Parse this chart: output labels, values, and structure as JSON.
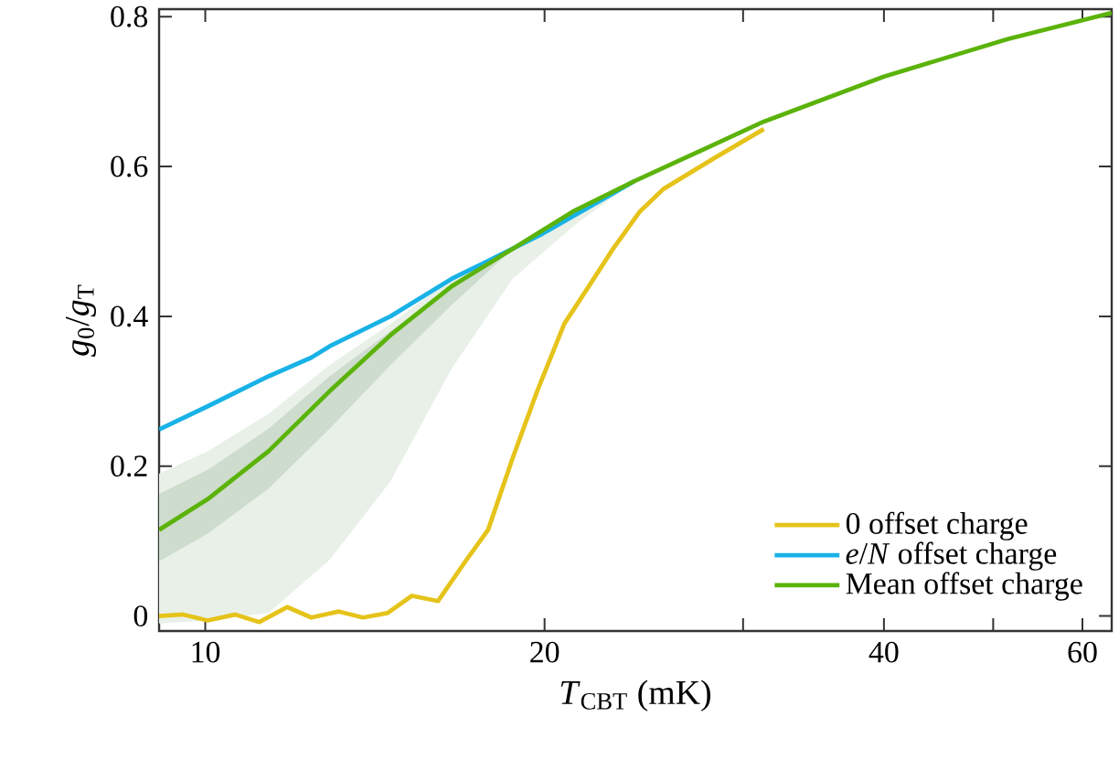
{
  "chart_data": {
    "type": "line",
    "xlabel": "*T*$_{CBT}$ (mK)",
    "ylabel": "*g*$_{0}$/*g*$_{T}$",
    "log": "x",
    "xlim": [
      9.1,
      63.7
    ],
    "ylim": [
      -0.02,
      0.81
    ],
    "xticks": [
      10,
      20,
      {
        "value": 30,
        "label": null
      },
      40,
      {
        "value": 50,
        "label": null
      },
      60
    ],
    "yticks": [
      0,
      0.2,
      0.4,
      0.6,
      0.8
    ],
    "legend": "bottom right",
    "marker": "none",
    "line_style": "solid",
    "series": [
      {
        "name": "0 offset charge",
        "color": "#e5c31a",
        "x": [
          9.1,
          9.56,
          10.05,
          10.63,
          11.17,
          11.82,
          12.42,
          13.14,
          13.8,
          14.51,
          15.25,
          16.09,
          16.96,
          17.82,
          18.73,
          19.7,
          20.82,
          21.89,
          23.0,
          24.3,
          25.5,
          28.2,
          31.3
        ],
        "values": [
          0,
          0.002,
          -0.006,
          0.002,
          -0.008,
          0.012,
          -0.002,
          0.006,
          -0.002,
          0.004,
          0.027,
          0.02,
          0.07,
          0.115,
          0.21,
          0.3,
          0.39,
          0.44,
          0.49,
          0.54,
          0.57,
          0.61,
          0.65
        ]
      },
      {
        "name": "*e*/*N* offset charge",
        "color": "#18b2e6",
        "x": [
          9.1,
          10.05,
          11.38,
          12.42,
          12.89,
          14.6,
          16.54,
          17.6,
          19.9,
          24.0
        ],
        "values": [
          0.249,
          0.28,
          0.32,
          0.345,
          0.36,
          0.4,
          0.45,
          0.47,
          0.51,
          0.58
        ]
      },
      {
        "name": "Mean offset charge",
        "color": "#5bb30a",
        "x": [
          9.1,
          10.05,
          11.38,
          12.89,
          14.6,
          16.54,
          18.73,
          21.2,
          24.0,
          31.3,
          40,
          51.5,
          63.7
        ],
        "values": [
          0.115,
          0.156,
          0.22,
          0.3,
          0.375,
          0.44,
          0.49,
          0.54,
          0.58,
          0.66,
          0.72,
          0.77,
          0.805
        ],
        "lower": [
          -0.01,
          -0.006,
          0.004,
          0.075,
          0.18,
          0.33,
          0.45,
          0.52,
          0.58,
          0.66,
          0.72,
          0.77,
          0.805
        ],
        "upper": [
          0.19,
          0.22,
          0.27,
          0.335,
          0.39,
          0.45,
          0.49,
          0.54,
          0.58,
          0.66,
          0.72,
          0.77,
          0.805
        ]
      },
      {
        "color": "#cddccd",
        "x": [
          9.1,
          10.05,
          11.38,
          12.89,
          14.6,
          16.54,
          18.73,
          21.2,
          24.0
        ],
        "values": [
          null,
          null,
          null,
          null,
          null,
          null,
          null,
          null,
          null
        ],
        "lower": [
          0.073,
          0.11,
          0.17,
          0.25,
          0.335,
          0.415,
          0.49,
          0.54,
          0.58
        ],
        "upper": [
          0.163,
          0.195,
          0.25,
          0.32,
          0.38,
          0.44,
          0.49,
          0.54,
          0.58
        ]
      }
    ]
  }
}
